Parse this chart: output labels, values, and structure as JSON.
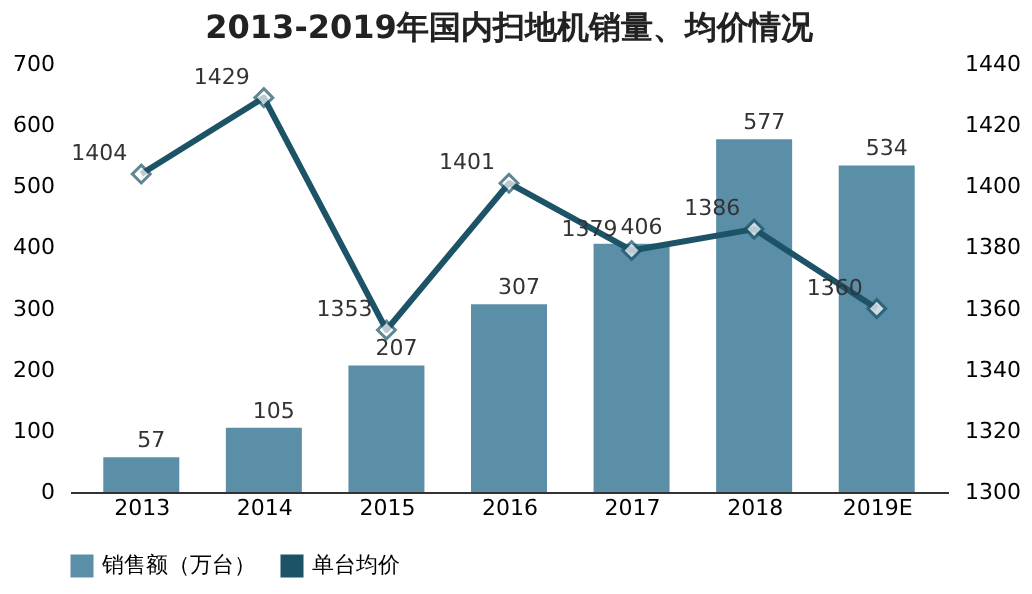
{
  "chart_data": {
    "type": "bar",
    "title": "2013-2019年国内扫地机销量、均价情况",
    "categories": [
      "2013",
      "2014",
      "2015",
      "2016",
      "2017",
      "2018",
      "2019E"
    ],
    "series": [
      {
        "name": "销售额（万台）",
        "color": "#5b8fa8",
        "values": [
          57,
          105,
          207,
          307,
          406,
          577,
          534
        ]
      },
      {
        "name": "单台均价",
        "type": "line",
        "axis": "y2",
        "color": "#1c5366",
        "marker": "diamond",
        "values": [
          1404,
          1429,
          1353,
          1401,
          1379,
          1386,
          1360
        ]
      }
    ],
    "ylim": [
      0,
      700
    ],
    "yticks": [
      0,
      100,
      200,
      300,
      400,
      500,
      600,
      700
    ],
    "y2lim": [
      1300,
      1440
    ],
    "y2ticks": [
      1300,
      1320,
      1340,
      1360,
      1380,
      1400,
      1420,
      1440
    ],
    "data_labels": true,
    "legend": "bottom",
    "grid": false
  }
}
